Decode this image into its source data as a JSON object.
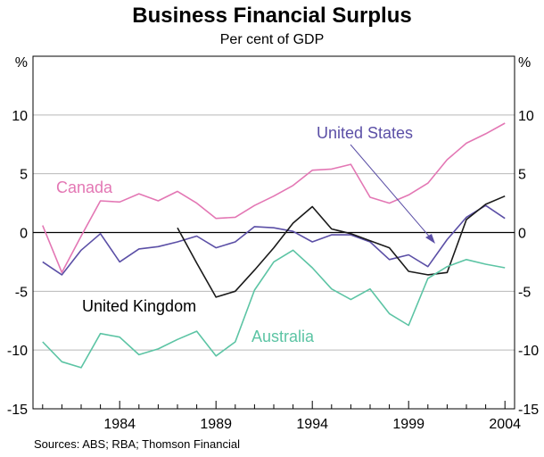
{
  "chart_data": {
    "type": "line",
    "title": "Business Financial Surplus",
    "subtitle": "Per cent of GDP",
    "ylabel_left": "%",
    "ylabel_right": "%",
    "ylim": [
      -15,
      15
    ],
    "yticks": [
      -15,
      -10,
      -5,
      0,
      5,
      10
    ],
    "xlim": [
      1979.5,
      2004.5
    ],
    "xticks": [
      1984,
      1989,
      1994,
      1999,
      2004
    ],
    "source": "Sources: ABS; RBA; Thomson Financial",
    "series": [
      {
        "name": "Canada",
        "color": "#e377b4",
        "x": [
          1980,
          1981,
          1982,
          1983,
          1984,
          1985,
          1986,
          1987,
          1988,
          1989,
          1990,
          1991,
          1992,
          1993,
          1994,
          1995,
          1996,
          1997,
          1998,
          1999,
          2000,
          2001,
          2002,
          2003,
          2004
        ],
        "values": [
          0.6,
          -3.4,
          -0.3,
          2.7,
          2.6,
          3.3,
          2.7,
          3.5,
          2.5,
          1.2,
          1.3,
          2.3,
          3.1,
          4.0,
          5.3,
          5.4,
          5.8,
          3.0,
          2.5,
          3.2,
          4.2,
          6.2,
          7.6,
          8.4,
          9.3
        ]
      },
      {
        "name": "United States",
        "color": "#5b4fa6",
        "x": [
          1980,
          1981,
          1982,
          1983,
          1984,
          1985,
          1986,
          1987,
          1988,
          1989,
          1990,
          1991,
          1992,
          1993,
          1994,
          1995,
          1996,
          1997,
          1998,
          1999,
          2000,
          2001,
          2002,
          2003,
          2004
        ],
        "values": [
          -2.5,
          -3.6,
          -1.5,
          -0.1,
          -2.5,
          -1.4,
          -1.2,
          -0.8,
          -0.3,
          -1.3,
          -0.8,
          0.5,
          0.4,
          0.1,
          -0.8,
          -0.2,
          -0.2,
          -0.8,
          -2.3,
          -1.9,
          -2.9,
          -0.6,
          1.3,
          2.3,
          1.2
        ]
      },
      {
        "name": "United Kingdom",
        "color": "#1a1a1a",
        "x": [
          1987,
          1988,
          1989,
          1990,
          1991,
          1992,
          1993,
          1994,
          1995,
          1996,
          1997,
          1998,
          1999,
          2000,
          2001,
          2002,
          2003,
          2004
        ],
        "values": [
          0.4,
          -2.6,
          -5.5,
          -5.0,
          -3.2,
          -1.3,
          0.8,
          2.2,
          0.3,
          -0.1,
          -0.7,
          -1.3,
          -3.3,
          -3.6,
          -3.4,
          1.1,
          2.4,
          3.1
        ]
      },
      {
        "name": "Australia",
        "color": "#5cc4a4",
        "x": [
          1980,
          1981,
          1982,
          1983,
          1984,
          1985,
          1986,
          1987,
          1988,
          1989,
          1990,
          1991,
          1992,
          1993,
          1994,
          1995,
          1996,
          1997,
          1998,
          1999,
          2000,
          2001,
          2002,
          2003,
          2004
        ],
        "values": [
          -9.3,
          -11.0,
          -11.5,
          -8.6,
          -8.9,
          -10.4,
          -9.9,
          -9.1,
          -8.4,
          -10.5,
          -9.3,
          -4.9,
          -2.5,
          -1.5,
          -3.0,
          -4.8,
          -5.7,
          -4.8,
          -6.9,
          -7.9,
          -3.9,
          -2.9,
          -2.3,
          -2.7,
          -3.0
        ]
      }
    ],
    "labels": [
      {
        "text": "Canada",
        "series": "Canada"
      },
      {
        "text": "United States",
        "series": "United States"
      },
      {
        "text": "United Kingdom",
        "series": "United Kingdom"
      },
      {
        "text": "Australia",
        "series": "Australia"
      }
    ]
  }
}
